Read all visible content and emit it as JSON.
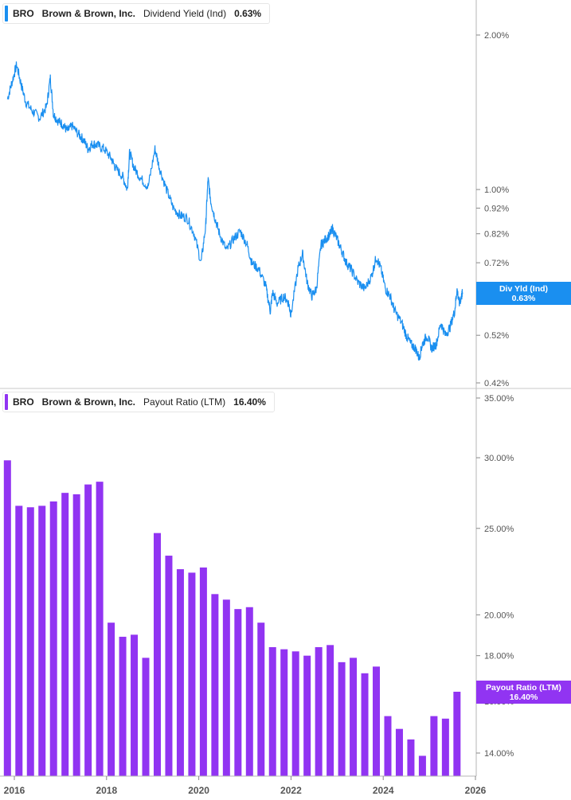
{
  "colors": {
    "yield_line": "#1a8ff0",
    "payout_bar": "#9134f2",
    "grid": "#d0d0d0",
    "axis_text": "#555555",
    "background": "#ffffff"
  },
  "top_panel": {
    "legend": {
      "ticker": "BRO",
      "company": "Brown & Brown, Inc.",
      "metric": "Dividend Yield (Ind)",
      "value": "0.63%"
    },
    "flag": {
      "label": "Div Yld (Ind)",
      "value": "0.63%"
    }
  },
  "bottom_panel": {
    "legend": {
      "ticker": "BRO",
      "company": "Brown & Brown, Inc.",
      "metric": "Payout Ratio (LTM)",
      "value": "16.40%"
    },
    "flag": {
      "label": "Payout Ratio (LTM)",
      "value": "16.40%"
    }
  },
  "chart_data": [
    {
      "type": "line",
      "title": "Dividend Yield (Ind)",
      "scale": "log",
      "x_range": [
        2015.85,
        2025.95
      ],
      "ylim": [
        0.42,
        2.2
      ],
      "yticks": [
        2.0,
        1.0,
        0.92,
        0.82,
        0.72,
        0.62,
        0.52,
        0.42
      ],
      "ytick_labels": [
        "2.00%",
        "1.00%",
        "0.92%",
        "0.82%",
        "0.72%",
        "0.62%",
        "0.52%",
        "0.42%"
      ],
      "series": [
        {
          "name": "Dividend Yield (Ind)",
          "x": [
            2015.85,
            2015.95,
            2016.05,
            2016.15,
            2016.25,
            2016.4,
            2016.55,
            2016.7,
            2016.78,
            2016.85,
            2016.95,
            2017.05,
            2017.15,
            2017.25,
            2017.4,
            2017.5,
            2017.6,
            2017.7,
            2017.8,
            2017.95,
            2018.1,
            2018.2,
            2018.35,
            2018.45,
            2018.5,
            2018.6,
            2018.75,
            2018.9,
            2019.05,
            2019.15,
            2019.3,
            2019.45,
            2019.6,
            2019.75,
            2019.9,
            2020.05,
            2020.15,
            2020.2,
            2020.26,
            2020.35,
            2020.45,
            2020.6,
            2020.75,
            2020.9,
            2021.05,
            2021.15,
            2021.3,
            2021.45,
            2021.55,
            2021.6,
            2021.7,
            2021.85,
            2021.95,
            2022.0,
            2022.15,
            2022.25,
            2022.35,
            2022.45,
            2022.55,
            2022.65,
            2022.75,
            2022.85,
            2022.9,
            2023.0,
            2023.1,
            2023.2,
            2023.3,
            2023.45,
            2023.6,
            2023.75,
            2023.85,
            2023.95,
            2024.05,
            2024.15,
            2024.25,
            2024.4,
            2024.5,
            2024.6,
            2024.7,
            2024.78,
            2024.85,
            2024.95,
            2025.05,
            2025.15,
            2025.25,
            2025.35,
            2025.45,
            2025.55,
            2025.6,
            2025.65,
            2025.7,
            2025.72
          ],
          "y": [
            1.5,
            1.62,
            1.75,
            1.6,
            1.48,
            1.42,
            1.38,
            1.45,
            1.65,
            1.4,
            1.36,
            1.34,
            1.3,
            1.33,
            1.28,
            1.25,
            1.2,
            1.23,
            1.22,
            1.2,
            1.15,
            1.1,
            1.06,
            1.0,
            1.18,
            1.1,
            1.05,
            1.01,
            1.2,
            1.1,
            1.0,
            0.92,
            0.89,
            0.88,
            0.82,
            0.72,
            0.85,
            1.05,
            0.95,
            0.88,
            0.82,
            0.76,
            0.8,
            0.83,
            0.78,
            0.72,
            0.7,
            0.65,
            0.58,
            0.63,
            0.6,
            0.62,
            0.6,
            0.57,
            0.7,
            0.75,
            0.66,
            0.62,
            0.64,
            0.78,
            0.8,
            0.82,
            0.84,
            0.8,
            0.76,
            0.72,
            0.7,
            0.66,
            0.64,
            0.68,
            0.74,
            0.7,
            0.64,
            0.62,
            0.58,
            0.55,
            0.52,
            0.5,
            0.49,
            0.47,
            0.5,
            0.52,
            0.49,
            0.5,
            0.55,
            0.52,
            0.54,
            0.58,
            0.64,
            0.6,
            0.62,
            0.63
          ]
        }
      ]
    },
    {
      "type": "bar",
      "title": "Payout Ratio (LTM)",
      "scale": "log",
      "x_range": [
        2015.85,
        2025.95
      ],
      "ylim": [
        13.5,
        35.5
      ],
      "yticks": [
        35.0,
        30.0,
        25.0,
        20.0,
        18.0,
        16.0,
        14.0
      ],
      "ytick_labels": [
        "35.00%",
        "30.00%",
        "25.00%",
        "20.00%",
        "18.00%",
        "16.00%",
        "14.00%"
      ],
      "x_ticks": [
        2016,
        2018,
        2020,
        2022,
        2024,
        2026
      ],
      "x_tick_labels": [
        "2016",
        "2018",
        "2020",
        "2022",
        "2024",
        "2026"
      ],
      "series": [
        {
          "name": "Payout Ratio (LTM)",
          "x": [
            2015.85,
            2016.1,
            2016.35,
            2016.6,
            2016.85,
            2017.1,
            2017.35,
            2017.6,
            2017.85,
            2018.1,
            2018.35,
            2018.6,
            2018.85,
            2019.1,
            2019.35,
            2019.6,
            2019.85,
            2020.1,
            2020.35,
            2020.6,
            2020.85,
            2021.1,
            2021.35,
            2021.6,
            2021.85,
            2022.1,
            2022.35,
            2022.6,
            2022.85,
            2023.1,
            2023.35,
            2023.6,
            2023.85,
            2024.1,
            2024.35,
            2024.6,
            2024.85,
            2025.1,
            2025.35,
            2025.6
          ],
          "values": [
            29.8,
            26.5,
            26.4,
            26.5,
            26.8,
            27.4,
            27.3,
            28.0,
            28.2,
            19.6,
            18.9,
            19.0,
            17.9,
            24.7,
            23.3,
            22.5,
            22.3,
            22.6,
            21.1,
            20.8,
            20.3,
            20.4,
            19.6,
            18.4,
            18.3,
            18.2,
            18.0,
            18.4,
            18.5,
            17.7,
            17.9,
            17.2,
            17.5,
            15.4,
            14.9,
            14.5,
            13.9,
            15.4,
            15.3,
            16.4
          ]
        }
      ]
    }
  ]
}
